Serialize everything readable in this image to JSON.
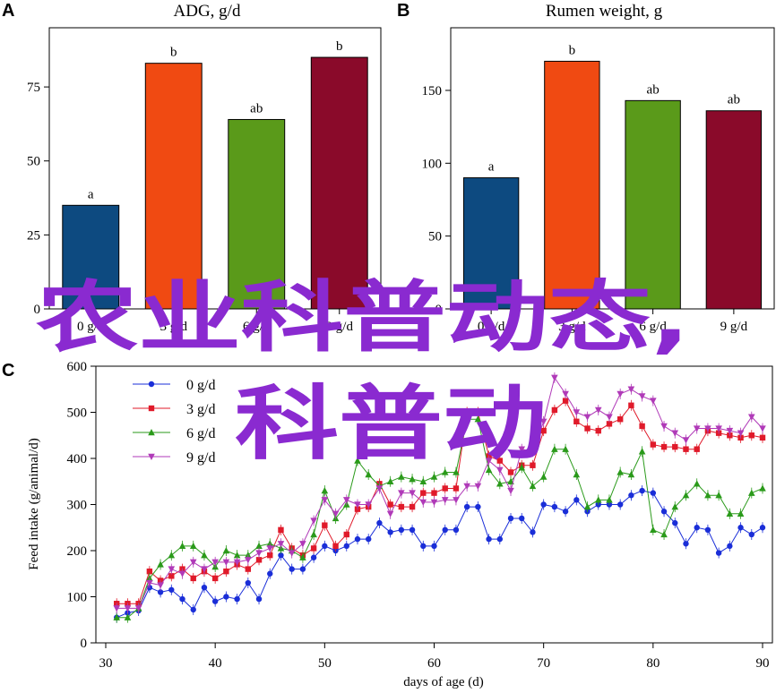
{
  "watermark": {
    "line1": "农业科普动态,",
    "line2": "科普动",
    "color": "#8a2ad0"
  },
  "chart_data": [
    {
      "panel": "A",
      "type": "bar",
      "title": "ADG, g/d",
      "categories": [
        "0 g/d",
        "3 g/d",
        "6 g/d",
        "9 g/d"
      ],
      "values": [
        35,
        83,
        64,
        85
      ],
      "significance": [
        "a",
        "b",
        "ab",
        "b"
      ],
      "colors": [
        "#0d4a80",
        "#f04a12",
        "#5a9a1a",
        "#8a0a2a"
      ],
      "yticks": [
        0,
        25,
        50,
        75
      ],
      "ylim": [
        0,
        95
      ]
    },
    {
      "panel": "B",
      "type": "bar",
      "title": "Rumen weight, g",
      "categories": [
        "0 g/d",
        "3 g/d",
        "6 g/d",
        "9 g/d"
      ],
      "values": [
        90,
        170,
        143,
        136
      ],
      "significance": [
        "a",
        "b",
        "ab",
        "ab"
      ],
      "colors": [
        "#0d4a80",
        "#f04a12",
        "#5a9a1a",
        "#8a0a2a"
      ],
      "yticks": [
        0,
        50,
        100,
        150
      ],
      "ylim": [
        0,
        193
      ]
    },
    {
      "panel": "C",
      "type": "line",
      "xlabel": "days of age (d)",
      "ylabel": "Feed intake (g/animal/d)",
      "xlim": [
        30,
        90
      ],
      "ylim": [
        0,
        600
      ],
      "xticks": [
        30,
        40,
        50,
        60,
        70,
        80,
        90
      ],
      "yticks": [
        0,
        100,
        200,
        300,
        400,
        500,
        600
      ],
      "legend_position": "top-left",
      "x": [
        31,
        32,
        33,
        34,
        35,
        36,
        37,
        38,
        39,
        40,
        41,
        42,
        43,
        44,
        45,
        46,
        47,
        48,
        49,
        50,
        51,
        52,
        53,
        54,
        55,
        56,
        57,
        58,
        59,
        60,
        61,
        62,
        63,
        64,
        65,
        66,
        67,
        68,
        69,
        70,
        71,
        72,
        73,
        74,
        75,
        76,
        77,
        78,
        79,
        80,
        81,
        82,
        83,
        84,
        85,
        86,
        87,
        88,
        89,
        90
      ],
      "series": [
        {
          "name": "0 g/d",
          "color": "#1a2ed8",
          "marker": "circle",
          "values": [
            55,
            65,
            70,
            120,
            110,
            115,
            95,
            72,
            120,
            90,
            100,
            95,
            130,
            95,
            150,
            190,
            160,
            160,
            185,
            210,
            200,
            210,
            225,
            225,
            260,
            240,
            245,
            245,
            210,
            210,
            245,
            245,
            295,
            295,
            225,
            225,
            270,
            270,
            240,
            300,
            295,
            285,
            310,
            285,
            300,
            300,
            300,
            320,
            330,
            325,
            285,
            260,
            215,
            250,
            245,
            195,
            210,
            250,
            235,
            250
          ]
        },
        {
          "name": "3 g/d",
          "color": "#e01a2a",
          "marker": "square",
          "values": [
            85,
            85,
            85,
            155,
            135,
            145,
            160,
            140,
            155,
            140,
            155,
            170,
            160,
            180,
            190,
            245,
            205,
            190,
            205,
            255,
            210,
            235,
            290,
            295,
            345,
            300,
            295,
            295,
            325,
            325,
            335,
            335,
            500,
            500,
            405,
            395,
            370,
            385,
            385,
            460,
            505,
            525,
            480,
            465,
            460,
            475,
            485,
            515,
            470,
            430,
            425,
            425,
            420,
            420,
            460,
            455,
            450,
            445,
            450,
            445
          ]
        },
        {
          "name": "6 g/d",
          "color": "#2a9a1a",
          "marker": "triangle",
          "values": [
            55,
            55,
            75,
            140,
            170,
            190,
            210,
            210,
            190,
            165,
            200,
            190,
            190,
            210,
            215,
            205,
            200,
            185,
            235,
            330,
            270,
            300,
            395,
            365,
            340,
            350,
            360,
            355,
            350,
            360,
            370,
            370,
            485,
            485,
            375,
            345,
            350,
            380,
            340,
            360,
            420,
            420,
            365,
            295,
            310,
            310,
            370,
            365,
            415,
            245,
            235,
            295,
            320,
            345,
            320,
            320,
            280,
            280,
            325,
            335
          ]
        },
        {
          "name": "9 g/d",
          "color": "#b03ab8",
          "marker": "triangle-down",
          "values": [
            75,
            75,
            75,
            130,
            125,
            160,
            150,
            175,
            160,
            175,
            175,
            175,
            180,
            195,
            205,
            215,
            195,
            215,
            265,
            310,
            280,
            310,
            300,
            300,
            335,
            280,
            325,
            325,
            305,
            305,
            310,
            310,
            340,
            340,
            395,
            375,
            330,
            420,
            415,
            480,
            575,
            540,
            500,
            490,
            505,
            490,
            540,
            550,
            535,
            525,
            470,
            455,
            440,
            465,
            465,
            465,
            460,
            455,
            490,
            465
          ]
        }
      ]
    }
  ]
}
